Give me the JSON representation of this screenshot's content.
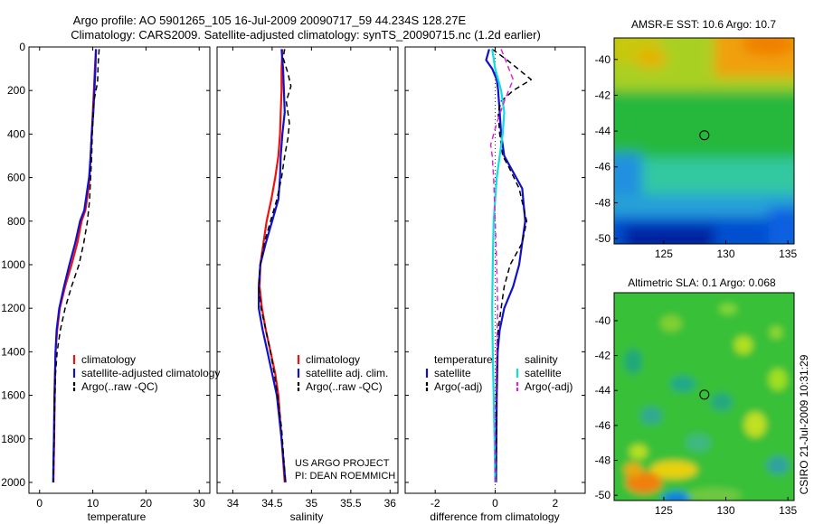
{
  "header": {
    "title_line1": "Argo profile: AO 5901265_105 16-Jul-2009 20090717_59 44.234S 128.27E",
    "title_line2": "Climatology: CARS2009. Satellite-adjusted climatology: synTS_20090715.nc (1.2d earlier)"
  },
  "credit": "CSIRO 21-Jul-2009 10:31:29",
  "project": {
    "line1": "US ARGO PROJECT",
    "line2": "PI: DEAN ROEMMICH"
  },
  "colors": {
    "red": "#ee1111",
    "blue": "#1111cc",
    "black": "#000000",
    "magenta": "#dd22dd",
    "cyan": "#11dddd"
  },
  "chart_data": [
    {
      "type": "line",
      "title": "",
      "xlabel": "temperature",
      "ylabel": "",
      "xlim": [
        -2,
        32
      ],
      "ylim": [
        2050,
        0
      ],
      "xticks": [
        0,
        10,
        20,
        30
      ],
      "yticks": [
        0,
        200,
        400,
        600,
        800,
        1000,
        1200,
        1400,
        1600,
        1800,
        2000
      ],
      "show_yticklabels": true,
      "legend": {
        "position": "lower-center",
        "entries": [
          {
            "label": "climatology",
            "color": "#ee1111",
            "dash": ""
          },
          {
            "label": "satellite-adjusted climatology",
            "color": "#1111cc",
            "dash": ""
          },
          {
            "label": "Argo(..raw -QC)",
            "color": "#000000",
            "dash": "6,4"
          }
        ]
      },
      "series": [
        {
          "name": "climatology",
          "color": "#ee1111",
          "dash": "",
          "width": 2.2,
          "x": [
            10.6,
            10.4,
            10.2,
            10.0,
            9.8,
            9.6,
            9.4,
            9.2,
            8.6,
            7.9,
            7.1,
            6.0,
            4.8,
            3.8,
            3.3,
            3.0,
            2.85,
            2.75,
            2.65,
            2.6
          ],
          "y": [
            10,
            100,
            200,
            300,
            400,
            500,
            600,
            650,
            750,
            800,
            900,
            1000,
            1100,
            1200,
            1300,
            1400,
            1600,
            1800,
            1900,
            2000
          ]
        },
        {
          "name": "satellite-adjusted climatology",
          "color": "#1111cc",
          "dash": "",
          "width": 2.2,
          "x": [
            10.6,
            10.5,
            10.3,
            10.1,
            9.8,
            9.6,
            9.3,
            9.0,
            8.4,
            7.6,
            6.7,
            5.6,
            4.6,
            3.7,
            3.2,
            3.0,
            2.8,
            2.7,
            2.6,
            2.55
          ],
          "y": [
            10,
            100,
            200,
            300,
            400,
            500,
            600,
            650,
            750,
            800,
            900,
            1000,
            1100,
            1200,
            1300,
            1400,
            1600,
            1800,
            1900,
            2000
          ]
        },
        {
          "name": "Argo(..raw -QC)",
          "color": "#000000",
          "dash": "6,4",
          "width": 1.5,
          "x": [
            11.2,
            11.0,
            10.9,
            10.6,
            10.2,
            9.9,
            9.8,
            9.6,
            9.4,
            9.0,
            8.3,
            7.4,
            6.0,
            4.8,
            3.9,
            3.3,
            3.0,
            2.8,
            2.7,
            2.6
          ],
          "y": [
            10,
            80,
            160,
            200,
            250,
            400,
            500,
            600,
            700,
            800,
            900,
            1000,
            1100,
            1200,
            1300,
            1400,
            1500,
            1700,
            1850,
            2000
          ]
        }
      ]
    },
    {
      "type": "line",
      "title": "",
      "xlabel": "salinity",
      "ylabel": "",
      "xlim": [
        33.8,
        36.1
      ],
      "ylim": [
        2050,
        0
      ],
      "xticks": [
        34,
        34.5,
        35,
        35.5,
        36
      ],
      "yticks": [
        0,
        200,
        400,
        600,
        800,
        1000,
        1200,
        1400,
        1600,
        1800,
        2000
      ],
      "show_yticklabels": false,
      "legend": {
        "position": "lower-center",
        "entries": [
          {
            "label": "climatology",
            "color": "#ee1111",
            "dash": ""
          },
          {
            "label": "satellite adj. clim.",
            "color": "#1111cc",
            "dash": ""
          },
          {
            "label": "Argo(..raw -QC)",
            "color": "#000000",
            "dash": "6,4"
          }
        ]
      },
      "series": [
        {
          "name": "climatology",
          "color": "#ee1111",
          "dash": "",
          "width": 2.2,
          "x": [
            34.63,
            34.62,
            34.62,
            34.61,
            34.6,
            34.58,
            34.54,
            34.49,
            34.43,
            34.39,
            34.35,
            34.34,
            34.37,
            34.42,
            34.48,
            34.54,
            34.58,
            34.62,
            34.66
          ],
          "y": [
            10,
            100,
            200,
            300,
            400,
            500,
            600,
            700,
            800,
            900,
            1000,
            1100,
            1200,
            1300,
            1400,
            1500,
            1600,
            1800,
            2000
          ]
        },
        {
          "name": "satellite adj. clim.",
          "color": "#1111cc",
          "dash": "",
          "width": 2.2,
          "x": [
            34.62,
            34.64,
            34.65,
            34.66,
            34.63,
            34.61,
            34.6,
            34.58,
            34.5,
            34.42,
            34.35,
            34.33,
            34.33,
            34.38,
            34.44,
            34.5,
            34.56,
            34.62,
            34.67
          ],
          "y": [
            10,
            100,
            200,
            300,
            400,
            500,
            600,
            700,
            800,
            900,
            1000,
            1100,
            1200,
            1300,
            1400,
            1500,
            1600,
            1800,
            2000
          ]
        },
        {
          "name": "Argo(..raw -QC)",
          "color": "#000000",
          "dash": "6,4",
          "width": 1.5,
          "x": [
            34.66,
            34.64,
            34.7,
            34.74,
            34.68,
            34.72,
            34.7,
            34.66,
            34.62,
            34.56,
            34.48,
            34.4,
            34.35,
            34.33,
            34.36,
            34.42,
            34.48,
            34.55,
            34.62,
            34.67
          ],
          "y": [
            10,
            50,
            120,
            180,
            250,
            350,
            420,
            500,
            600,
            700,
            800,
            900,
            1000,
            1100,
            1200,
            1300,
            1400,
            1550,
            1750,
            2000
          ]
        }
      ]
    },
    {
      "type": "line",
      "title": "",
      "xlabel": "difference from climatology",
      "ylabel": "",
      "xlim": [
        -3,
        3
      ],
      "ylim": [
        2050,
        0
      ],
      "xticks": [
        -2,
        0,
        2
      ],
      "yticks": [
        0,
        200,
        400,
        600,
        800,
        1000,
        1200,
        1400,
        1600,
        1800,
        2000
      ],
      "show_yticklabels": false,
      "legend": {
        "position": "lower-center",
        "headers": [
          "temperature",
          "salinity"
        ],
        "entries": [
          {
            "label": "satellite",
            "color": "#1111cc",
            "dash": "",
            "col": 0
          },
          {
            "label": "Argo(-adj)",
            "color": "#000000",
            "dash": "6,4",
            "col": 0
          },
          {
            "label": "satellite",
            "color": "#11dddd",
            "dash": "",
            "col": 1
          },
          {
            "label": "Argo(-adj)",
            "color": "#dd22dd",
            "dash": "6,4",
            "col": 1
          }
        ]
      },
      "series": [
        {
          "name": "temperature satellite",
          "color": "#1111cc",
          "dash": "",
          "width": 2.2,
          "x": [
            -0.2,
            -0.3,
            -0.1,
            0.05,
            0.1,
            0.15,
            0.2,
            0.3,
            0.5,
            0.9,
            1.0,
            0.8,
            0.6,
            0.3,
            0.15,
            0.08,
            0.05,
            0.04,
            0.03
          ],
          "y": [
            10,
            60,
            100,
            150,
            200,
            300,
            400,
            500,
            550,
            650,
            800,
            1000,
            1100,
            1200,
            1300,
            1400,
            1600,
            1800,
            2000
          ]
        },
        {
          "name": "temperature Argo(-adj)",
          "color": "#000000",
          "dash": "6,4",
          "width": 1.5,
          "x": [
            -0.1,
            0.4,
            1.2,
            0.6,
            0.2,
            0.1,
            0.15,
            0.25,
            0.45,
            0.8,
            1.05,
            0.9,
            0.5,
            0.3,
            0.2,
            0.1,
            0.06,
            0.05,
            0.04,
            0.03
          ],
          "y": [
            10,
            60,
            150,
            200,
            250,
            300,
            400,
            500,
            550,
            650,
            800,
            900,
            1000,
            1100,
            1200,
            1300,
            1400,
            1600,
            1800,
            2000
          ]
        },
        {
          "name": "salinity satellite",
          "color": "#11dddd",
          "dash": "",
          "width": 2.2,
          "x": [
            -0.1,
            0.0,
            0.2,
            0.3,
            0.25,
            0.15,
            0.05,
            -0.05,
            -0.08,
            -0.1,
            -0.08,
            -0.05,
            -0.02,
            0.0
          ],
          "y": [
            10,
            100,
            200,
            300,
            400,
            500,
            600,
            800,
            1000,
            1200,
            1400,
            1600,
            1800,
            2000
          ]
        },
        {
          "name": "salinity Argo(-adj)",
          "color": "#dd22dd",
          "dash": "6,4",
          "width": 1.5,
          "x": [
            0.2,
            0.6,
            0.3,
            0.05,
            -0.15,
            -0.1,
            -0.05,
            0.0,
            0.05,
            0.08,
            0.05,
            0.0,
            0.0
          ],
          "y": [
            10,
            150,
            250,
            350,
            450,
            500,
            600,
            800,
            1000,
            1200,
            1400,
            1700,
            2000
          ]
        }
      ]
    },
    {
      "type": "heatmap",
      "title": "AMSR-E SST: 10.6 Argo: 10.7",
      "xlabel": "",
      "ylabel": "",
      "xlim": [
        121,
        135.5
      ],
      "ylim": [
        -50.3,
        -38.8
      ],
      "xticks": [
        125,
        130,
        135
      ],
      "yticks": [
        -40,
        -42,
        -44,
        -46,
        -48,
        -50
      ],
      "marker": {
        "lon": 128.27,
        "lat": -44.234
      }
    },
    {
      "type": "heatmap",
      "title": "Altimetric SLA: 0.1 Argo: 0.068",
      "xlabel": "",
      "ylabel": "",
      "xlim": [
        121,
        135.5
      ],
      "ylim": [
        -50.3,
        -38.4
      ],
      "xticks": [
        125,
        130,
        135
      ],
      "yticks": [
        -40,
        -42,
        -44,
        -46,
        -48,
        -50
      ],
      "marker": {
        "lon": 128.27,
        "lat": -44.234
      }
    }
  ]
}
